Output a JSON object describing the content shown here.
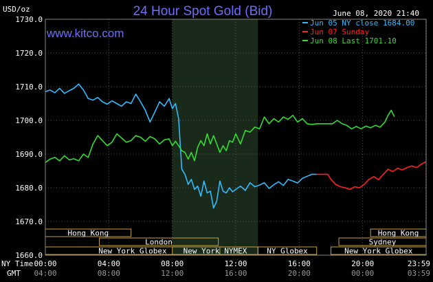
{
  "chart_data": {
    "type": "line",
    "title": "24 Hour Spot Gold (Bid)",
    "date_label": "June 08, 2020 21:40",
    "ylabel": "USD/oz",
    "site": "www.kitco.com",
    "ylim": [
      1660,
      1730
    ],
    "y_ticks": [
      "1730.0",
      "1720.0",
      "1710.0",
      "1700.0",
      "1690.0",
      "1680.0",
      "1670.0",
      "1660.0"
    ],
    "xlim": [
      0,
      24
    ],
    "x_tick_positions": [
      0,
      4,
      8,
      12,
      16,
      20,
      23.9833
    ],
    "row1_label": "NY Time",
    "row1_ticks": [
      "00:00",
      "04:00",
      "08:00",
      "12:00",
      "16:00",
      "20:00",
      "23:59"
    ],
    "row2_label": "GMT",
    "row2_ticks": [
      "04:00",
      "08:00",
      "12:00",
      "16:00",
      "20:00",
      "00:00",
      "03:59"
    ],
    "shaded_region": [
      8.0,
      13.4
    ],
    "legend": [
      {
        "text": "Jun 05 NY close 1684.00",
        "color": "#33bbff"
      },
      {
        "text": "Jun 07 Sunday",
        "color": "#ff2222"
      },
      {
        "text": "Jun 08 Last 1701.10",
        "color": "#33dd33"
      }
    ],
    "sessions": [
      {
        "label": "Hong Kong",
        "start": 0,
        "end": 5.4,
        "row": 0
      },
      {
        "label": "London",
        "start": 3.4,
        "end": 10.9,
        "row": 1
      },
      {
        "label": "New York Globex",
        "start": 0,
        "end": 11.0,
        "row": 2
      },
      {
        "label": "New York NYMEX",
        "start": 8.0,
        "end": 13.4,
        "row": 2
      },
      {
        "label": "NY Globex",
        "start": 13.4,
        "end": 17.1,
        "row": 2
      },
      {
        "label": "Hong Kong",
        "start": 20.5,
        "end": 24,
        "row": 0
      },
      {
        "label": "Sydney",
        "start": 18.5,
        "end": 24,
        "row": 1
      },
      {
        "label": "New York Globex",
        "start": 18.0,
        "end": 24,
        "row": 2
      }
    ],
    "series": [
      {
        "color": "#33bbff",
        "x": [
          0,
          0.3,
          0.6,
          0.9,
          1.2,
          1.5,
          1.8,
          2.1,
          2.4,
          2.7,
          3.0,
          3.3,
          3.6,
          3.9,
          4.2,
          4.5,
          4.8,
          5.1,
          5.4,
          5.7,
          6.0,
          6.3,
          6.6,
          6.9,
          7.2,
          7.5,
          7.8,
          8.0,
          8.2,
          8.4,
          8.6,
          8.8,
          9.0,
          9.2,
          9.4,
          9.6,
          9.8,
          10.0,
          10.2,
          10.4,
          10.6,
          10.8,
          11.0,
          11.2,
          11.4,
          11.6,
          11.8,
          12.0,
          12.3,
          12.6,
          12.9,
          13.2,
          13.5,
          13.8,
          14.1,
          14.4,
          14.7,
          15.0,
          15.3,
          15.6,
          15.9,
          16.2,
          16.5,
          16.8,
          17.1
        ],
        "y": [
          1708.5,
          1709.0,
          1708.2,
          1709.5,
          1708.0,
          1708.8,
          1709.5,
          1710.8,
          1709.0,
          1706.5,
          1706.0,
          1706.8,
          1705.5,
          1704.8,
          1705.8,
          1705.0,
          1704.2,
          1705.5,
          1705.0,
          1707.8,
          1705.5,
          1703.0,
          1699.5,
          1702.5,
          1705.5,
          1704.2,
          1706.5,
          1703.5,
          1705.0,
          1700.5,
          1685.5,
          1684.0,
          1681.0,
          1682.5,
          1679.5,
          1680.5,
          1677.5,
          1682.0,
          1678.5,
          1679.0,
          1674.0,
          1676.0,
          1682.0,
          1679.0,
          1678.5,
          1680.0,
          1678.8,
          1679.5,
          1680.5,
          1679.2,
          1681.5,
          1680.3,
          1680.8,
          1681.5,
          1679.8,
          1680.9,
          1681.8,
          1680.7,
          1682.5,
          1682.0,
          1681.4,
          1682.8,
          1683.4,
          1684.0,
          1684.0
        ]
      },
      {
        "color": "#ff2222",
        "x": [
          17.1,
          17.5,
          17.8,
          18.0,
          18.3,
          18.6,
          18.9,
          19.2,
          19.5,
          19.8,
          20.1,
          20.4,
          20.7,
          21.0,
          21.3,
          21.6,
          21.9,
          22.2,
          22.5,
          22.8,
          23.1,
          23.4,
          23.7,
          24.0
        ],
        "y": [
          1684.0,
          1684.0,
          1684.0,
          1682.5,
          1681.0,
          1680.3,
          1680.0,
          1679.5,
          1680.3,
          1680.0,
          1681.0,
          1682.5,
          1683.3,
          1682.4,
          1684.0,
          1685.5,
          1684.8,
          1685.8,
          1685.3,
          1686.0,
          1686.5,
          1686.0,
          1687.0,
          1687.8
        ]
      },
      {
        "color": "#33dd33",
        "x": [
          0,
          0.3,
          0.6,
          0.9,
          1.2,
          1.5,
          1.8,
          2.1,
          2.4,
          2.7,
          3.0,
          3.3,
          3.6,
          3.9,
          4.2,
          4.5,
          4.8,
          5.1,
          5.4,
          5.7,
          6.0,
          6.3,
          6.6,
          6.9,
          7.2,
          7.5,
          7.8,
          8.0,
          8.2,
          8.4,
          8.6,
          8.8,
          9.0,
          9.2,
          9.4,
          9.6,
          9.8,
          10.0,
          10.2,
          10.4,
          10.6,
          10.8,
          11.0,
          11.2,
          11.4,
          11.6,
          11.8,
          12.0,
          12.3,
          12.6,
          12.9,
          13.2,
          13.5,
          13.8,
          14.1,
          14.4,
          14.7,
          15.0,
          15.3,
          15.6,
          15.9,
          16.2,
          16.5,
          16.8,
          17.1,
          17.5,
          17.8,
          18.1,
          18.4,
          18.7,
          19.0,
          19.3,
          19.6,
          19.9,
          20.2,
          20.5,
          20.8,
          21.1,
          21.4,
          21.6,
          21.8,
          22.0
        ],
        "y": [
          1687.5,
          1688.5,
          1689.0,
          1688.0,
          1689.5,
          1688.3,
          1688.6,
          1688.0,
          1690.0,
          1689.0,
          1693.0,
          1695.5,
          1694.0,
          1692.5,
          1693.5,
          1696.0,
          1694.8,
          1693.5,
          1694.0,
          1695.5,
          1695.0,
          1693.8,
          1695.2,
          1694.5,
          1693.0,
          1694.2,
          1694.5,
          1692.5,
          1693.8,
          1692.5,
          1691.0,
          1690.5,
          1688.5,
          1690.5,
          1688.0,
          1692.0,
          1694.0,
          1692.5,
          1696.0,
          1693.0,
          1695.5,
          1693.0,
          1690.5,
          1692.5,
          1691.0,
          1694.0,
          1693.5,
          1696.0,
          1693.0,
          1697.0,
          1696.5,
          1698.0,
          1697.5,
          1701.0,
          1699.0,
          1700.5,
          1699.5,
          1701.0,
          1700.3,
          1701.5,
          1699.5,
          1700.5,
          1699.0,
          1698.8,
          1699.0,
          1699.0,
          1699.0,
          1699.0,
          1700.0,
          1699.0,
          1698.5,
          1697.5,
          1698.2,
          1697.5,
          1698.3,
          1697.8,
          1698.5,
          1698.0,
          1699.5,
          1701.5,
          1703.0,
          1701.1
        ]
      }
    ]
  }
}
